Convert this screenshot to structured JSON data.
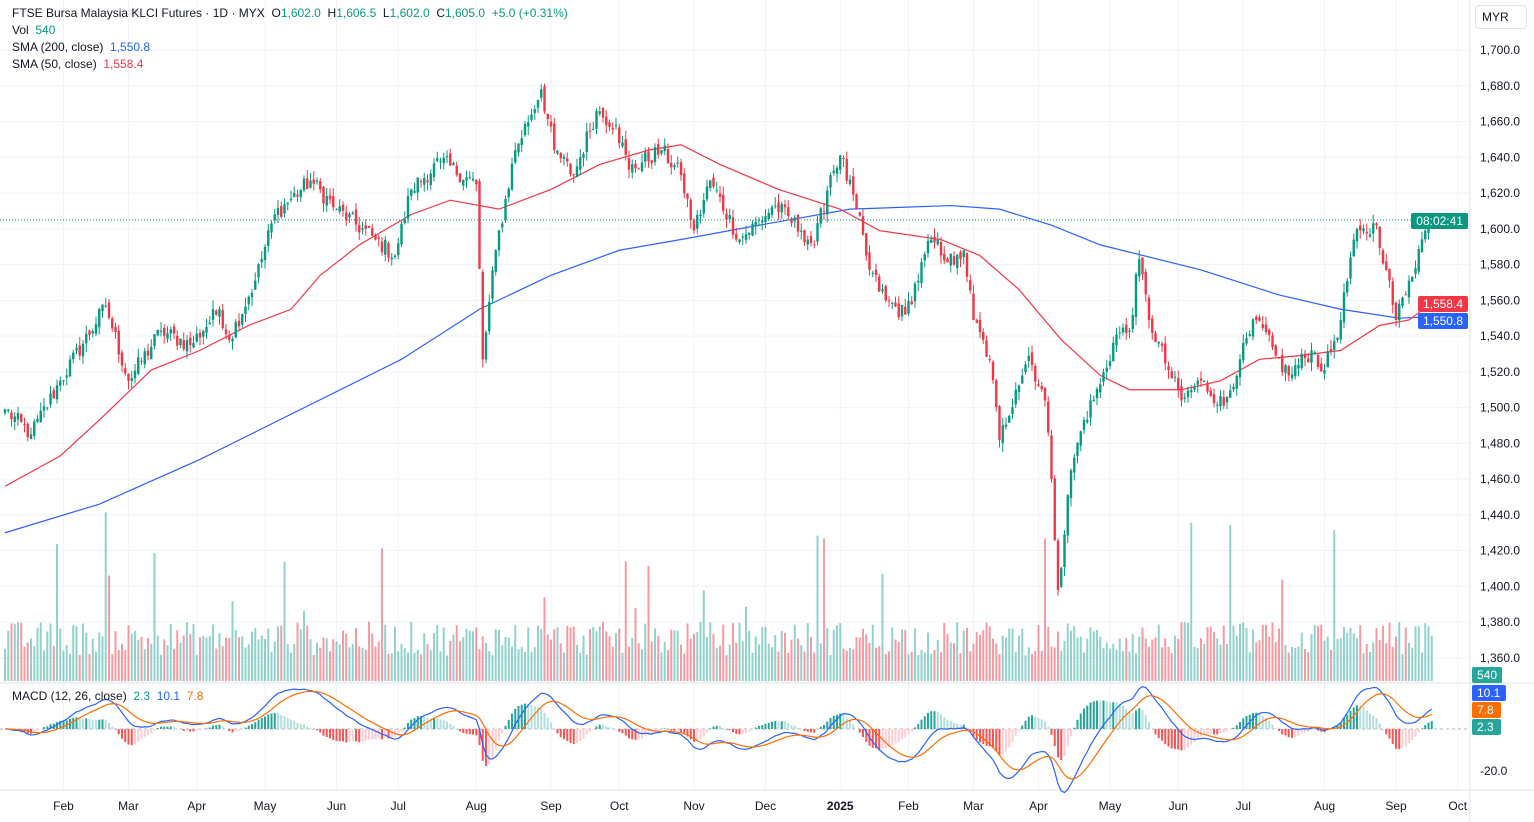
{
  "header": {
    "symbol": "FTSE Bursa Malaysia KLCI Futures",
    "interval": "1D",
    "exchange": "MYX",
    "sep": "·",
    "open_label": "O",
    "open": "1,602.0",
    "high_label": "H",
    "high": "1,606.5",
    "low_label": "L",
    "low": "1,602.0",
    "close_label": "C",
    "close": "1,605.0",
    "change": "+5.0 (+0.31%)"
  },
  "volume": {
    "label": "Vol",
    "value": "540"
  },
  "sma200": {
    "label": "SMA (200, close)",
    "value": "1,550.8"
  },
  "sma50": {
    "label": "SMA (50, close)",
    "value": "1,558.4"
  },
  "macd": {
    "label": "MACD (12, 26, close)",
    "hist": "2.3",
    "macd": "10.1",
    "signal": "7.8"
  },
  "currency_button": "MYR",
  "price_tags": {
    "countdown": "08:02:41",
    "sma50": "1,558.4",
    "sma200": "1,550.8",
    "volume": "540",
    "macd": "10.1",
    "signal": "7.8",
    "hist": "2.3"
  },
  "colors": {
    "up": "#089981",
    "down": "#f23645",
    "sma200": "#2962ff",
    "sma50": "#f23645",
    "macd": "#2962ff",
    "signal": "#ff6d00"
  },
  "chart_data": {
    "type": "candlestick",
    "title": "FTSE Bursa Malaysia KLCI Futures · 1D · MYX",
    "ylim": [
      1350,
      1710
    ],
    "y_ticks": [
      "1,360.0",
      "1,380.0",
      "1,400.0",
      "1,420.0",
      "1,440.0",
      "1,460.0",
      "1,480.0",
      "1,500.0",
      "1,520.0",
      "1,540.0",
      "1,560.0",
      "1,580.0",
      "1,600.0",
      "1,620.0",
      "1,640.0",
      "1,660.0",
      "1,680.0",
      "1,700.0"
    ],
    "x_ticks": [
      {
        "label": "Feb",
        "bar": 18
      },
      {
        "label": "Mar",
        "bar": 38
      },
      {
        "label": "Apr",
        "bar": 59
      },
      {
        "label": "May",
        "bar": 80
      },
      {
        "label": "Jun",
        "bar": 102
      },
      {
        "label": "Jul",
        "bar": 121
      },
      {
        "label": "Aug",
        "bar": 145
      },
      {
        "label": "Sep",
        "bar": 168
      },
      {
        "label": "Oct",
        "bar": 189
      },
      {
        "label": "Nov",
        "bar": 212
      },
      {
        "label": "Dec",
        "bar": 234
      },
      {
        "label": "2025",
        "bar": 257
      },
      {
        "label": "Feb",
        "bar": 278
      },
      {
        "label": "Mar",
        "bar": 298
      },
      {
        "label": "Apr",
        "bar": 318
      },
      {
        "label": "May",
        "bar": 340
      },
      {
        "label": "Jun",
        "bar": 361
      },
      {
        "label": "Jul",
        "bar": 381
      },
      {
        "label": "Aug",
        "bar": 406
      },
      {
        "label": "Sep",
        "bar": 428
      },
      {
        "label": "Oct",
        "bar": 447
      }
    ],
    "total_bars": 440,
    "close_trace": [
      [
        0,
        1499
      ],
      [
        8,
        1485
      ],
      [
        17,
        1515
      ],
      [
        31,
        1557
      ],
      [
        38,
        1515
      ],
      [
        48,
        1543
      ],
      [
        57,
        1535
      ],
      [
        66,
        1555
      ],
      [
        69,
        1538
      ],
      [
        77,
        1571
      ],
      [
        83,
        1608
      ],
      [
        94,
        1627
      ],
      [
        102,
        1611
      ],
      [
        114,
        1594
      ],
      [
        120,
        1585
      ],
      [
        125,
        1622
      ],
      [
        134,
        1638
      ],
      [
        145,
        1625
      ],
      [
        147,
        1527
      ],
      [
        151,
        1588
      ],
      [
        157,
        1644
      ],
      [
        165,
        1678
      ],
      [
        169,
        1644
      ],
      [
        175,
        1630
      ],
      [
        182,
        1666
      ],
      [
        188,
        1658
      ],
      [
        192,
        1633
      ],
      [
        202,
        1644
      ],
      [
        208,
        1630
      ],
      [
        212,
        1599
      ],
      [
        217,
        1627
      ],
      [
        226,
        1594
      ],
      [
        237,
        1613
      ],
      [
        245,
        1599
      ],
      [
        249,
        1591
      ],
      [
        254,
        1630
      ],
      [
        257,
        1641
      ],
      [
        262,
        1611
      ],
      [
        266,
        1577
      ],
      [
        271,
        1560
      ],
      [
        277,
        1552
      ],
      [
        285,
        1594
      ],
      [
        292,
        1580
      ],
      [
        295,
        1588
      ],
      [
        298,
        1549
      ],
      [
        303,
        1527
      ],
      [
        306,
        1482
      ],
      [
        311,
        1510
      ],
      [
        315,
        1529
      ],
      [
        320,
        1504
      ],
      [
        322,
        1460
      ],
      [
        324,
        1398
      ],
      [
        328,
        1465
      ],
      [
        332,
        1493
      ],
      [
        337,
        1513
      ],
      [
        342,
        1541
      ],
      [
        346,
        1543
      ],
      [
        349,
        1583
      ],
      [
        352,
        1549
      ],
      [
        358,
        1521
      ],
      [
        362,
        1504
      ],
      [
        368,
        1515
      ],
      [
        375,
        1501
      ],
      [
        380,
        1527
      ],
      [
        385,
        1549
      ],
      [
        391,
        1529
      ],
      [
        395,
        1518
      ],
      [
        402,
        1532
      ],
      [
        406,
        1521
      ],
      [
        411,
        1549
      ],
      [
        415,
        1594
      ],
      [
        422,
        1602
      ],
      [
        425,
        1577
      ],
      [
        428,
        1549
      ],
      [
        432,
        1571
      ],
      [
        437,
        1599
      ],
      [
        439,
        1605
      ]
    ],
    "sma200_trace": [
      [
        0,
        1430
      ],
      [
        29,
        1446
      ],
      [
        60,
        1471
      ],
      [
        91,
        1499
      ],
      [
        122,
        1527
      ],
      [
        146,
        1555
      ],
      [
        168,
        1574
      ],
      [
        189,
        1588
      ],
      [
        208,
        1594
      ],
      [
        232,
        1602
      ],
      [
        260,
        1611
      ],
      [
        291,
        1613
      ],
      [
        306,
        1611
      ],
      [
        322,
        1602
      ],
      [
        337,
        1591
      ],
      [
        368,
        1577
      ],
      [
        392,
        1563
      ],
      [
        411,
        1555
      ],
      [
        429,
        1550
      ],
      [
        439,
        1550.8
      ]
    ],
    "sma50_trace": [
      [
        0,
        1456
      ],
      [
        17,
        1473
      ],
      [
        29,
        1493
      ],
      [
        45,
        1521
      ],
      [
        60,
        1532
      ],
      [
        75,
        1546
      ],
      [
        88,
        1555
      ],
      [
        97,
        1574
      ],
      [
        109,
        1591
      ],
      [
        125,
        1608
      ],
      [
        137,
        1616
      ],
      [
        152,
        1611
      ],
      [
        168,
        1622
      ],
      [
        183,
        1636
      ],
      [
        198,
        1644
      ],
      [
        208,
        1647
      ],
      [
        220,
        1636
      ],
      [
        238,
        1622
      ],
      [
        257,
        1611
      ],
      [
        269,
        1599
      ],
      [
        288,
        1594
      ],
      [
        300,
        1585
      ],
      [
        312,
        1566
      ],
      [
        325,
        1538
      ],
      [
        337,
        1518
      ],
      [
        346,
        1510
      ],
      [
        362,
        1510
      ],
      [
        374,
        1515
      ],
      [
        386,
        1527
      ],
      [
        398,
        1529
      ],
      [
        411,
        1532
      ],
      [
        423,
        1546
      ],
      [
        432,
        1549
      ],
      [
        439,
        1558.4
      ]
    ],
    "macd_y_ticks": [
      "-20.0"
    ],
    "macd_ylim": [
      -28,
      25
    ]
  }
}
